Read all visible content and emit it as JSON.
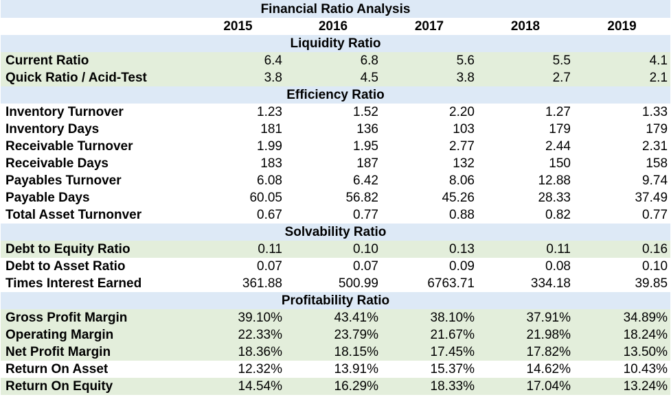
{
  "title": "Financial Ratio Analysis",
  "years": [
    "2015",
    "2016",
    "2017",
    "2018",
    "2019"
  ],
  "colors": {
    "section_band": "#dde9f6",
    "highlight_row": "#e3eedb",
    "plain_row": "#ffffff"
  },
  "sections": [
    {
      "name": "Liquidity Ratio",
      "rows": [
        {
          "label": "Current Ratio",
          "values": [
            "6.4",
            "6.8",
            "5.6",
            "5.5",
            "4.1"
          ],
          "highlight": true
        },
        {
          "label": "Quick Ratio / Acid-Test",
          "values": [
            "3.8",
            "4.5",
            "3.8",
            "2.7",
            "2.1"
          ],
          "highlight": true
        }
      ]
    },
    {
      "name": "Efficiency Ratio",
      "rows": [
        {
          "label": "Inventory Turnover",
          "values": [
            "1.23",
            "1.52",
            "2.20",
            "1.27",
            "1.33"
          ],
          "highlight": false
        },
        {
          "label": "Inventory Days",
          "values": [
            "181",
            "136",
            "103",
            "179",
            "179"
          ],
          "highlight": false
        },
        {
          "label": "Receivable Turnover",
          "values": [
            "1.99",
            "1.95",
            "2.77",
            "2.44",
            "2.31"
          ],
          "highlight": false
        },
        {
          "label": "Receivable Days",
          "values": [
            "183",
            "187",
            "132",
            "150",
            "158"
          ],
          "highlight": false
        },
        {
          "label": "Payables Turnover",
          "values": [
            "6.08",
            "6.42",
            "8.06",
            "12.88",
            "9.74"
          ],
          "highlight": false
        },
        {
          "label": "Payable Days",
          "values": [
            "60.05",
            "56.82",
            "45.26",
            "28.33",
            "37.49"
          ],
          "highlight": false
        },
        {
          "label": "Total Asset Turnonver",
          "values": [
            "0.67",
            "0.77",
            "0.88",
            "0.82",
            "0.77"
          ],
          "highlight": false
        }
      ]
    },
    {
      "name": "Solvability Ratio",
      "rows": [
        {
          "label": "Debt to Equity Ratio",
          "values": [
            "0.11",
            "0.10",
            "0.13",
            "0.11",
            "0.16"
          ],
          "highlight": true
        },
        {
          "label": "Debt to Asset Ratio",
          "values": [
            "0.07",
            "0.07",
            "0.09",
            "0.08",
            "0.10"
          ],
          "highlight": false
        },
        {
          "label": "Times Interest Earned",
          "values": [
            "361.88",
            "500.99",
            "6763.71",
            "334.18",
            "39.85"
          ],
          "highlight": false
        }
      ]
    },
    {
      "name": "Profitability Ratio",
      "rows": [
        {
          "label": "Gross Profit Margin",
          "values": [
            "39.10%",
            "43.41%",
            "38.10%",
            "37.91%",
            "34.89%"
          ],
          "highlight": true
        },
        {
          "label": "Operating Margin",
          "values": [
            "22.33%",
            "23.79%",
            "21.67%",
            "21.98%",
            "18.24%"
          ],
          "highlight": true
        },
        {
          "label": "Net Profit Margin",
          "values": [
            "18.36%",
            "18.15%",
            "17.45%",
            "17.82%",
            "13.50%"
          ],
          "highlight": true
        },
        {
          "label": "Return On Asset",
          "values": [
            "12.32%",
            "13.91%",
            "15.37%",
            "14.62%",
            "10.43%"
          ],
          "highlight": false
        },
        {
          "label": "Return On Equity",
          "values": [
            "14.54%",
            "16.29%",
            "18.33%",
            "17.04%",
            "13.24%"
          ],
          "highlight": true
        }
      ]
    }
  ]
}
